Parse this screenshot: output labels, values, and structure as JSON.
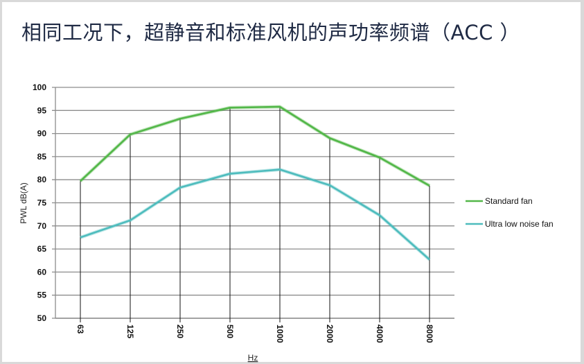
{
  "title": "相同工况下，超静音和标准风机的声功率频谱（ACC ）",
  "chart_data": {
    "type": "line",
    "title": "相同工况下，超静音和标准风机的声功率频谱（ACC ）",
    "xlabel": "Hz",
    "ylabel": "PWL  dB(A)",
    "categories": [
      "63",
      "125",
      "250",
      "500",
      "1000",
      "2000",
      "4000",
      "8000"
    ],
    "ylim": [
      50,
      100
    ],
    "yticks": [
      50,
      55,
      60,
      65,
      70,
      75,
      80,
      85,
      90,
      95,
      100
    ],
    "grid": true,
    "legend_position": "right",
    "series": [
      {
        "name": "Standard fan",
        "color": "#52b748",
        "values": [
          79.7,
          89.8,
          93.2,
          95.6,
          95.8,
          89.0,
          84.8,
          78.7
        ]
      },
      {
        "name": "Ultra low noise fan",
        "color": "#4dbcbd",
        "values": [
          67.5,
          71.2,
          78.3,
          81.3,
          82.2,
          78.8,
          72.3,
          62.7
        ]
      }
    ]
  }
}
